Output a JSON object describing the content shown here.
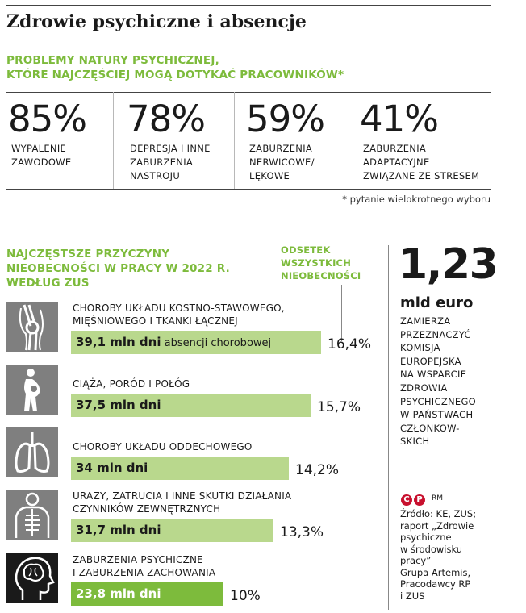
{
  "title": "Zdrowie psychiczne i absencje",
  "section1": {
    "heading_line1": "PROBLEMY NATURY PSYCHICZNEJ,",
    "heading_line2": "KTÓRE NAJCZĘŚCIEJ MOGĄ DOTYKAĆ PRACOWNIKÓW*",
    "stats": [
      {
        "value": "85%",
        "label": [
          "WYPALENIE",
          "ZAWODOWE"
        ]
      },
      {
        "value": "78%",
        "label": [
          "DEPRESJA I INNE",
          "ZABURZENIA",
          "NASTROJU"
        ]
      },
      {
        "value": "59%",
        "label": [
          "ZABURZENIA",
          "NERWICOWE/",
          "LĘKOWE"
        ]
      },
      {
        "value": "41%",
        "label": [
          "ZABURZENIA",
          "ADAPTACYJNE",
          "ZWIĄZANE ZE STRESEM"
        ]
      }
    ],
    "footnote": "* pytanie wielokrotnego wyboru"
  },
  "section2": {
    "heading": [
      "NAJCZĘSTSZE PRZYCZYNY",
      "NIEOBECNOŚCI W PRACY W 2022 R.",
      "WEDŁUG ZUS"
    ],
    "odsetek": [
      "ODSETEK",
      "WSZYSTKICH",
      "NIEOBECNOŚCI"
    ],
    "bar_suffix": "absencji chorobowej"
  },
  "side": {
    "amount": "1,23",
    "unit": "mld euro",
    "text": [
      "ZAMIERZA",
      "PRZEZNACZYĆ",
      "KOMISJA",
      "EUROPEJSKA",
      "NA WSPARCIE",
      "ZDROWIA",
      "PSYCHICZNEGO",
      "W PAŃSTWACH",
      "CZŁONKOW-",
      "SKICH"
    ],
    "copyright_c": "C",
    "copyright_p": "P",
    "rm": "RM",
    "source": [
      "Źródło: KE, ZUS;",
      "raport „Zdrowie",
      "psychiczne",
      "w środowisku",
      "pracy”",
      "Grupa Artemis,",
      "Pracodawcy RP",
      "i ZUS"
    ]
  },
  "chart_data": {
    "type": "bar",
    "title": "NAJCZĘSTSZE PRZYCZYNY NIEOBECNOŚCI W PRACY W 2022 R. WEDŁUG ZUS",
    "categories": [
      "CHOROBY UKŁADU KOSTNO-STAWOWEGO, MIĘŚNIOWEGO I TKANKI ŁĄCZNEJ",
      "CIĄŻA, PORÓD I POŁÓG",
      "CHOROBY UKŁADU ODDECHOWEGO",
      "URAZY, ZATRUCIA I INNE SKUTKI DZIAŁANIA CZYNNIKÓW ZEWNĘTRZNYCH",
      "ZABURZENIA PSYCHICZNE I ZABURZENIA ZACHOWANIA"
    ],
    "label_lines": [
      [
        "CHOROBY UKŁADU KOSTNO-STAWOWEGO,",
        "MIĘŚNIOWEGO I TKANKI ŁĄCZNEJ"
      ],
      [
        "CIĄŻA, PORÓD I POŁÓG"
      ],
      [
        "CHOROBY UKŁADU ODDECHOWEGO"
      ],
      [
        "URAZY, ZATRUCIA I INNE SKUTKI DZIAŁANIA",
        "CZYNNIKÓW ZEWNĘTRZNYCH"
      ],
      [
        "ZABURZENIA PSYCHICZNE",
        "I ZABURZENIA ZACHOWANIA"
      ]
    ],
    "icons": [
      "knee-joint-icon",
      "pregnancy-icon",
      "lungs-icon",
      "xray-body-icon",
      "brain-head-icon"
    ],
    "values_mln_days": [
      39.1,
      37.5,
      34,
      31.7,
      23.8
    ],
    "value_labels": [
      "39,1 mln dni",
      "37,5 mln dni",
      "34 mln dni",
      "31,7 mln dni",
      "23,8 mln dni"
    ],
    "percent_values": [
      16.4,
      15.7,
      14.2,
      13.3,
      10
    ],
    "percent_labels": [
      "16,4%",
      "15,7%",
      "14,2%",
      "13,3%",
      "10%"
    ],
    "highlight_index": 4,
    "colors": {
      "bar": "#b9d88d",
      "highlight": "#7dbb3c",
      "icon_bg": "#7f7f7f",
      "icon_bg_highlight": "#1a1a1a",
      "heading": "#7dbb3c"
    }
  }
}
